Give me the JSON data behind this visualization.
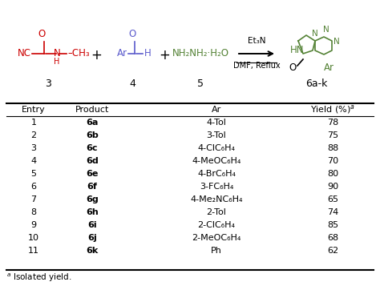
{
  "headers": [
    "Entry",
    "Product",
    "Ar",
    "Yield (%)$^{a}$"
  ],
  "rows": [
    [
      "1",
      "6a",
      "4-Tol",
      "78"
    ],
    [
      "2",
      "6b",
      "3-Tol",
      "75"
    ],
    [
      "3",
      "6c",
      "4-ClC₆H₄",
      "88"
    ],
    [
      "4",
      "6d",
      "4-MeOC₆H₄",
      "70"
    ],
    [
      "5",
      "6e",
      "4-BrC₆H₄",
      "80"
    ],
    [
      "6",
      "6f",
      "3-FC₆H₄",
      "90"
    ],
    [
      "7",
      "6g",
      "4-Me₂NC₆H₄",
      "65"
    ],
    [
      "8",
      "6h",
      "2-Tol",
      "74"
    ],
    [
      "9",
      "6i",
      "2-ClC₆H₄",
      "85"
    ],
    [
      "10",
      "6j",
      "2-MeOC₆H₄",
      "68"
    ],
    [
      "11",
      "6k",
      "Ph",
      "62"
    ]
  ],
  "footnote_super": "a",
  "footnote_text": " Isolated yield.",
  "background_color": "#ffffff",
  "red": "#cc0000",
  "blue": "#5b5bcc",
  "green": "#548235",
  "black": "#000000"
}
